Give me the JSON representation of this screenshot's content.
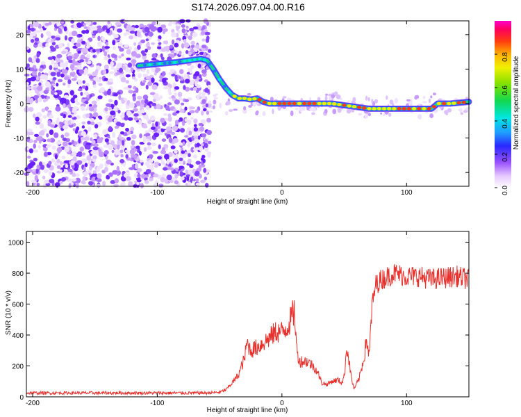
{
  "title": "S174.2026.097.04.00.R16",
  "charts": {
    "spectrogram": {
      "type": "heatmap",
      "xlabel": "Height of straight line (km)",
      "ylabel": "Frequency (Hz)",
      "xlim": [
        -205,
        150
      ],
      "ylim": [
        -24,
        24
      ],
      "x_ticks": [
        -200,
        -100,
        0,
        100
      ],
      "y_ticks": [
        -20,
        -10,
        0,
        10,
        20
      ],
      "ridge_x": [
        -115,
        -100,
        -85,
        -75,
        -65,
        -60,
        -55,
        -50,
        -45,
        -40,
        -35,
        -30,
        -25,
        -20,
        -15,
        -10,
        -5,
        0,
        10,
        20,
        30,
        40,
        50,
        60,
        70,
        80,
        90,
        100,
        110,
        120,
        125,
        135,
        150
      ],
      "ridge_freq": [
        11,
        11.5,
        12,
        12.5,
        13,
        12.5,
        10,
        7,
        4.5,
        2.5,
        1.5,
        1.5,
        1.2,
        1.5,
        0.5,
        0,
        0,
        0,
        0,
        0,
        0,
        0,
        -0.5,
        -1,
        -1.5,
        -1.5,
        -1.5,
        -1.5,
        -1.5,
        -1.5,
        0,
        0,
        0.5
      ],
      "colorbar": {
        "label": "Normalized spectral amplitude",
        "range": [
          0.0,
          1.0
        ],
        "ticks": [
          0.0,
          0.2,
          0.4,
          0.6,
          0.8
        ]
      }
    },
    "snr": {
      "type": "line",
      "xlabel": "Height of straight line (km)",
      "ylabel": "SNR (10 * v/v)",
      "xlim": [
        -205,
        150
      ],
      "ylim": [
        0,
        1070
      ],
      "x_ticks": [
        -200,
        -100,
        0,
        100
      ],
      "y_ticks": [
        0,
        200,
        400,
        600,
        800,
        1000
      ],
      "color": "#e8302c",
      "series": [
        {
          "x": [
            -205,
            -180,
            -150,
            -120,
            -90,
            -60,
            -50,
            -45,
            -40,
            -35,
            -30,
            -28,
            -25,
            -20,
            -15,
            -10,
            -5,
            0,
            5,
            10,
            12,
            14,
            20,
            25,
            28,
            32,
            36,
            40,
            45,
            48,
            50,
            52,
            56,
            58,
            62,
            66,
            68,
            70,
            72,
            75,
            78,
            80,
            90,
            100,
            110,
            120,
            130,
            140,
            150
          ],
          "y": [
            25,
            25,
            25,
            25,
            25,
            25,
            30,
            45,
            90,
            140,
            250,
            350,
            300,
            320,
            350,
            380,
            420,
            420,
            460,
            560,
            300,
            230,
            230,
            200,
            170,
            90,
            80,
            100,
            110,
            90,
            130,
            330,
            110,
            50,
            120,
            260,
            380,
            250,
            560,
            720,
            750,
            760,
            800,
            780,
            780,
            760,
            770,
            780,
            760
          ]
        }
      ]
    }
  }
}
